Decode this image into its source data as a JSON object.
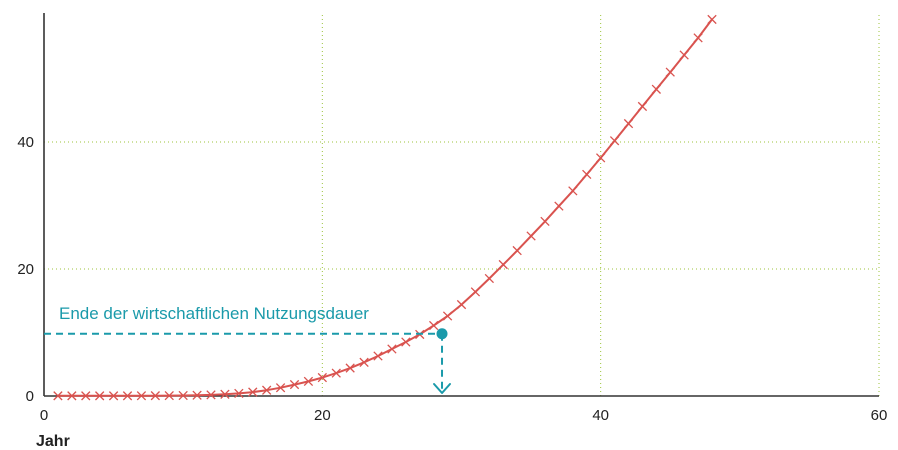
{
  "chart_data": {
    "type": "line",
    "xlabel": "Jahr",
    "ylabel": "",
    "xlim": [
      0,
      60
    ],
    "ylim": [
      0,
      60
    ],
    "x_ticks": [
      0,
      20,
      40,
      60
    ],
    "y_ticks": [
      0,
      20,
      40
    ],
    "x_tick_labels": [
      "0",
      "20",
      "40",
      "60"
    ],
    "y_tick_labels": [
      "0",
      "20",
      "40"
    ],
    "grid": true,
    "series": [
      {
        "marker": "x",
        "x": [
          1,
          2,
          3,
          4,
          5,
          6,
          7,
          8,
          9,
          10,
          11,
          12,
          13,
          14,
          15,
          16,
          17,
          18,
          19,
          20,
          21,
          22,
          23,
          24,
          25,
          26,
          27,
          28,
          29,
          30,
          31,
          32,
          33,
          34,
          35,
          36,
          37,
          38,
          39,
          40,
          41,
          42,
          43,
          44,
          45,
          46,
          47,
          48
        ],
        "y": [
          0.03,
          0.03,
          0.03,
          0.03,
          0.03,
          0.03,
          0.04,
          0.05,
          0.06,
          0.08,
          0.12,
          0.18,
          0.27,
          0.41,
          0.62,
          0.91,
          1.3,
          1.8,
          2.3,
          2.9,
          3.6,
          4.4,
          5.3,
          6.3,
          7.4,
          8.5,
          9.7,
          11.1,
          12.6,
          14.4,
          16.4,
          18.5,
          20.7,
          22.9,
          25.2,
          27.5,
          29.9,
          32.3,
          34.9,
          37.5,
          40.2,
          42.9,
          45.6,
          48.3,
          51.0,
          53.7,
          56.4,
          59.3
        ]
      }
    ],
    "annotation": {
      "text": "Ende der wirtschaftlichen Nutzungsdauer",
      "x": 28.6,
      "y": 9.8
    },
    "colors": {
      "line": "#d9534f",
      "annotation": "#1a9aaa",
      "grid": "#9cc33b",
      "axis": "#333333"
    }
  }
}
